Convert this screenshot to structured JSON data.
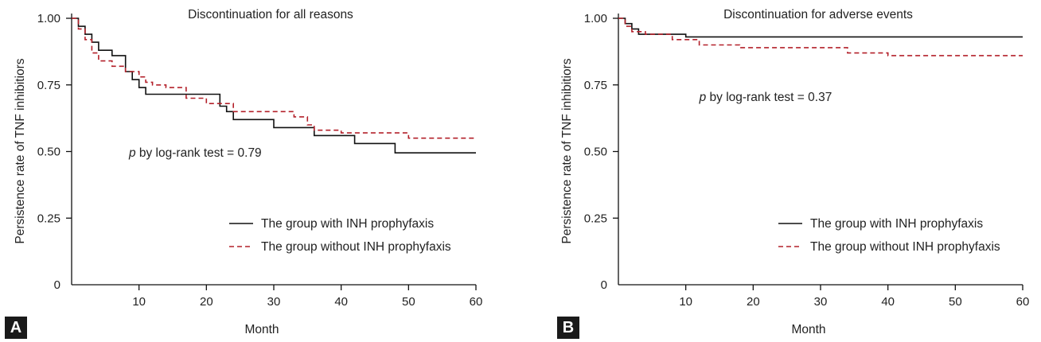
{
  "colors": {
    "with_inh": "#111111",
    "without_inh": "#b3202a",
    "axis": "#111111"
  },
  "chart_data": [
    {
      "panel_label": "A",
      "type": "line",
      "title": "Discontinuation for all reasons",
      "xlabel": "Month",
      "ylabel": "Persistence rate of TNF inhibitiors",
      "xlim": [
        0,
        60
      ],
      "ylim": [
        0,
        1
      ],
      "x_ticks": [
        10,
        20,
        30,
        40,
        50,
        60
      ],
      "y_ticks": [
        0,
        0.25,
        0.5,
        0.75,
        1.0
      ],
      "y_tick_labels": [
        "0",
        "0.25",
        "0.50",
        "0.75",
        "1.00"
      ],
      "grid": false,
      "legend_position": "bottom-right",
      "annotation": {
        "italic": "p",
        "text": " by log-rank test = 0.79",
        "x": 8.5,
        "y": 0.48
      },
      "series": [
        {
          "name": "The group with INH prophyfaxis",
          "style": "solid",
          "points": [
            [
              0,
              1.0
            ],
            [
              1,
              1.0
            ],
            [
              1,
              0.97
            ],
            [
              2,
              0.97
            ],
            [
              2,
              0.94
            ],
            [
              3,
              0.94
            ],
            [
              3,
              0.91
            ],
            [
              4,
              0.91
            ],
            [
              4,
              0.88
            ],
            [
              6,
              0.88
            ],
            [
              6,
              0.86
            ],
            [
              8,
              0.86
            ],
            [
              8,
              0.8
            ],
            [
              9,
              0.8
            ],
            [
              9,
              0.77
            ],
            [
              10,
              0.77
            ],
            [
              10,
              0.74
            ],
            [
              11,
              0.74
            ],
            [
              11,
              0.715
            ],
            [
              22,
              0.715
            ],
            [
              22,
              0.67
            ],
            [
              23,
              0.67
            ],
            [
              23,
              0.65
            ],
            [
              24,
              0.65
            ],
            [
              24,
              0.62
            ],
            [
              30,
              0.62
            ],
            [
              30,
              0.59
            ],
            [
              36,
              0.59
            ],
            [
              36,
              0.56
            ],
            [
              42,
              0.56
            ],
            [
              42,
              0.53
            ],
            [
              48,
              0.53
            ],
            [
              48,
              0.495
            ],
            [
              60,
              0.495
            ]
          ]
        },
        {
          "name": "The group without INH prophyfaxis",
          "style": "dashed",
          "points": [
            [
              0,
              1.0
            ],
            [
              1,
              1.0
            ],
            [
              1,
              0.96
            ],
            [
              2,
              0.96
            ],
            [
              2,
              0.92
            ],
            [
              3,
              0.92
            ],
            [
              3,
              0.87
            ],
            [
              4,
              0.87
            ],
            [
              4,
              0.84
            ],
            [
              6,
              0.84
            ],
            [
              6,
              0.82
            ],
            [
              8,
              0.82
            ],
            [
              8,
              0.8
            ],
            [
              10,
              0.8
            ],
            [
              10,
              0.78
            ],
            [
              11,
              0.78
            ],
            [
              11,
              0.76
            ],
            [
              12,
              0.76
            ],
            [
              12,
              0.75
            ],
            [
              14,
              0.75
            ],
            [
              14,
              0.74
            ],
            [
              17,
              0.74
            ],
            [
              17,
              0.7
            ],
            [
              20,
              0.7
            ],
            [
              20,
              0.68
            ],
            [
              24,
              0.68
            ],
            [
              24,
              0.65
            ],
            [
              33,
              0.65
            ],
            [
              33,
              0.63
            ],
            [
              35,
              0.63
            ],
            [
              35,
              0.6
            ],
            [
              36,
              0.6
            ],
            [
              36,
              0.58
            ],
            [
              40,
              0.58
            ],
            [
              40,
              0.57
            ],
            [
              50,
              0.57
            ],
            [
              50,
              0.55
            ],
            [
              60,
              0.55
            ]
          ]
        }
      ]
    },
    {
      "panel_label": "B",
      "type": "line",
      "title": "Discontinuation for adverse events",
      "xlabel": "Month",
      "ylabel": "Persistence rate of TNF inhibitiors",
      "xlim": [
        0,
        60
      ],
      "ylim": [
        0,
        1
      ],
      "x_ticks": [
        10,
        20,
        30,
        40,
        50,
        60
      ],
      "y_ticks": [
        0,
        0.25,
        0.5,
        0.75,
        1.0
      ],
      "y_tick_labels": [
        "0",
        "0.25",
        "0.50",
        "0.75",
        "1.00"
      ],
      "grid": false,
      "legend_position": "bottom-right",
      "annotation": {
        "italic": "p",
        "text": " by log-rank test = 0.37",
        "x": 12,
        "y": 0.69
      },
      "series": [
        {
          "name": "The group with INH prophyfaxis",
          "style": "solid",
          "points": [
            [
              0,
              1.0
            ],
            [
              1,
              1.0
            ],
            [
              1,
              0.98
            ],
            [
              2,
              0.98
            ],
            [
              2,
              0.96
            ],
            [
              3,
              0.96
            ],
            [
              3,
              0.94
            ],
            [
              10,
              0.94
            ],
            [
              10,
              0.93
            ],
            [
              60,
              0.93
            ]
          ]
        },
        {
          "name": "The group without INH prophyfaxis",
          "style": "dashed",
          "points": [
            [
              0,
              1.0
            ],
            [
              1,
              1.0
            ],
            [
              1,
              0.97
            ],
            [
              2,
              0.97
            ],
            [
              2,
              0.95
            ],
            [
              4,
              0.95
            ],
            [
              4,
              0.94
            ],
            [
              8,
              0.94
            ],
            [
              8,
              0.92
            ],
            [
              12,
              0.92
            ],
            [
              12,
              0.9
            ],
            [
              18,
              0.9
            ],
            [
              18,
              0.89
            ],
            [
              34,
              0.89
            ],
            [
              34,
              0.87
            ],
            [
              40,
              0.87
            ],
            [
              40,
              0.86
            ],
            [
              60,
              0.86
            ]
          ]
        }
      ]
    }
  ]
}
